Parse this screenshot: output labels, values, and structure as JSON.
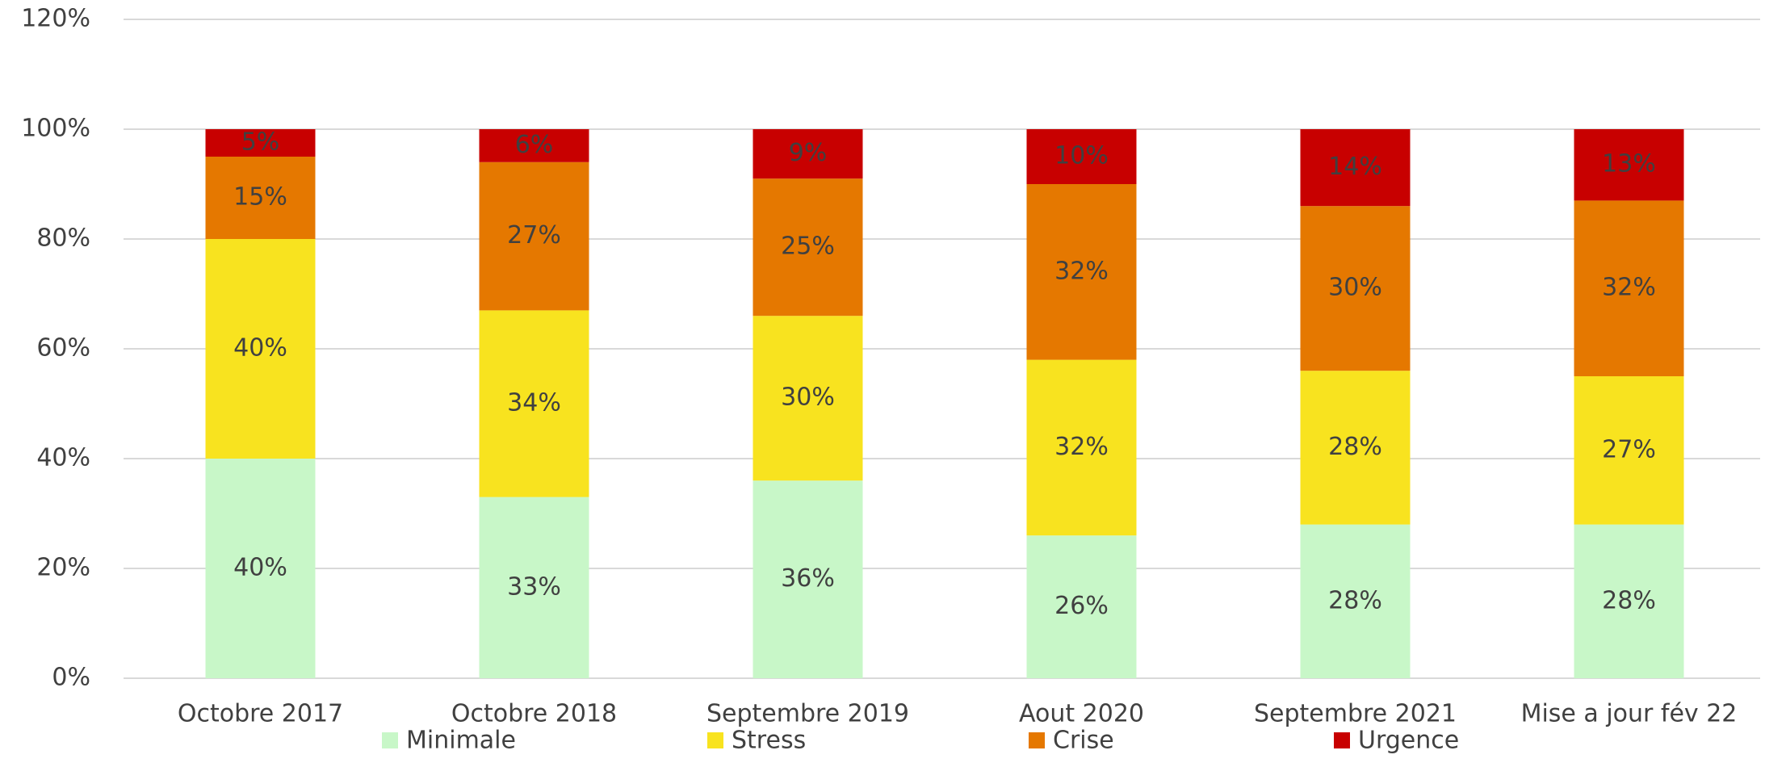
{
  "chart_data": {
    "type": "bar",
    "stacked": true,
    "categories": [
      "Octobre 2017",
      "Octobre 2018",
      "Septembre 2019",
      "Aout 2020",
      "Septembre 2021",
      "Mise a jour fév 22"
    ],
    "series": [
      {
        "name": "Minimale",
        "color": "#c8f7c8",
        "values": [
          40,
          33,
          36,
          26,
          28,
          28
        ],
        "value_labels": [
          "40%",
          "33%",
          "36%",
          "26%",
          "28%",
          "28%"
        ]
      },
      {
        "name": "Stress",
        "color": "#f8e31f",
        "values": [
          40,
          34,
          30,
          32,
          28,
          27
        ],
        "value_labels": [
          "40%",
          "34%",
          "30%",
          "32%",
          "28%",
          "27%"
        ]
      },
      {
        "name": "Crise",
        "color": "#e57800",
        "values": [
          15,
          27,
          25,
          32,
          30,
          32
        ],
        "value_labels": [
          "15%",
          "27%",
          "25%",
          "32%",
          "30%",
          "32%"
        ]
      },
      {
        "name": "Urgence",
        "color": "#c80000",
        "values": [
          5,
          6,
          9,
          10,
          14,
          13
        ],
        "value_labels": [
          "5%",
          "6%",
          "9%",
          "10%",
          "14%",
          "13%"
        ]
      }
    ],
    "ylim": [
      0,
      120
    ],
    "yticks": [
      {
        "value": 0,
        "label": "0%"
      },
      {
        "value": 20,
        "label": "20%"
      },
      {
        "value": 40,
        "label": "40%"
      },
      {
        "value": 60,
        "label": "60%"
      },
      {
        "value": 80,
        "label": "80%"
      },
      {
        "value": 100,
        "label": "100%"
      },
      {
        "value": 120,
        "label": "120%"
      }
    ],
    "grid": true,
    "legend": "bottom"
  }
}
